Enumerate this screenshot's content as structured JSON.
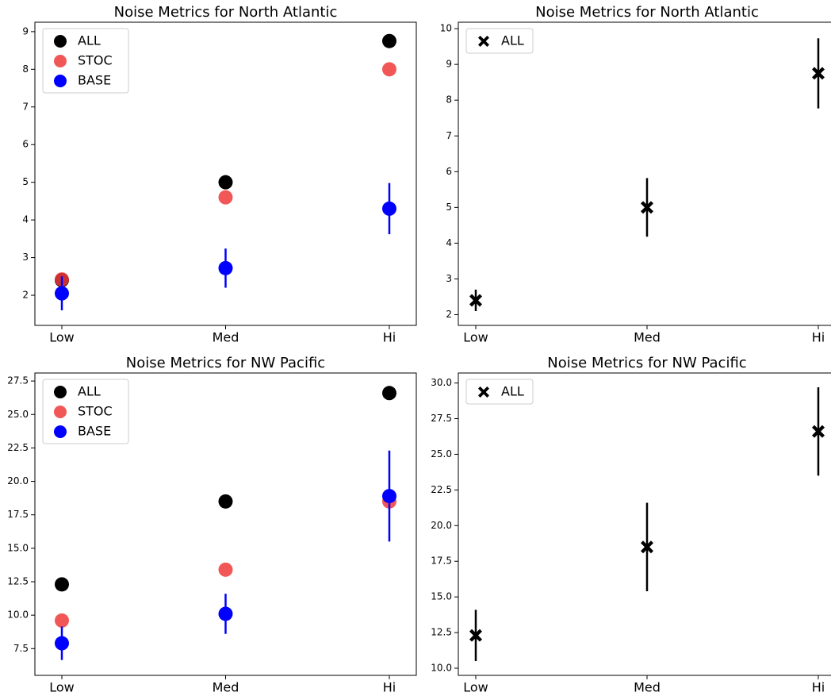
{
  "chart_data": [
    {
      "type": "scatter",
      "title": "Noise Metrics for North Atlantic",
      "categories": [
        "Low",
        "Med",
        "Hi"
      ],
      "series": [
        {
          "name": "ALL",
          "color": "#000000",
          "marker": "circle",
          "values": [
            2.4,
            5.0,
            8.75
          ]
        },
        {
          "name": "STOC",
          "color": "#f03a3a",
          "marker": "circle",
          "values": [
            2.42,
            4.6,
            8.0
          ]
        },
        {
          "name": "BASE",
          "color": "#0000ff",
          "marker": "circle",
          "values": [
            2.05,
            2.72,
            4.3
          ],
          "errors": [
            0.45,
            0.52,
            0.68
          ]
        }
      ],
      "ylim": [
        1.2,
        9.25
      ],
      "yticks": [
        2,
        3,
        4,
        5,
        6,
        7,
        8,
        9
      ],
      "grid": false,
      "legend": "upper left"
    },
    {
      "type": "scatter",
      "title": "Noise Metrics for North Atlantic",
      "categories": [
        "Low",
        "Med",
        "Hi"
      ],
      "series": [
        {
          "name": "ALL",
          "color": "#000000",
          "marker": "x",
          "values": [
            2.4,
            5.0,
            8.75
          ],
          "errors": [
            0.3,
            0.82,
            0.98
          ]
        }
      ],
      "ylim": [
        1.7,
        10.18
      ],
      "yticks": [
        2,
        3,
        4,
        5,
        6,
        7,
        8,
        9,
        10
      ],
      "grid": false,
      "legend": "upper left"
    },
    {
      "type": "scatter",
      "title": "Noise Metrics for NW Pacific",
      "categories": [
        "Low",
        "Med",
        "Hi"
      ],
      "series": [
        {
          "name": "ALL",
          "color": "#000000",
          "marker": "circle",
          "values": [
            12.3,
            18.5,
            26.6
          ]
        },
        {
          "name": "STOC",
          "color": "#f03a3a",
          "marker": "circle",
          "values": [
            9.6,
            13.4,
            18.5
          ]
        },
        {
          "name": "BASE",
          "color": "#0000ff",
          "marker": "circle",
          "values": [
            7.9,
            10.1,
            18.9
          ],
          "errors": [
            1.25,
            1.5,
            3.4
          ]
        }
      ],
      "ylim": [
        5.5,
        28.1
      ],
      "yticks": [
        7.5,
        {
          "value": 10,
          "label": "10.0"
        },
        12.5,
        {
          "value": 15,
          "label": "15.0"
        },
        17.5,
        {
          "value": 20,
          "label": "20.0"
        },
        22.5,
        {
          "value": 25,
          "label": "25.0"
        },
        27.5
      ],
      "grid": false,
      "legend": "upper left"
    },
    {
      "type": "scatter",
      "title": "Noise Metrics for NW Pacific",
      "categories": [
        "Low",
        "Med",
        "Hi"
      ],
      "series": [
        {
          "name": "ALL",
          "color": "#000000",
          "marker": "x",
          "values": [
            12.3,
            18.5,
            26.6
          ],
          "errors": [
            1.8,
            3.1,
            3.1
          ]
        }
      ],
      "ylim": [
        9.5,
        30.7
      ],
      "yticks": [
        {
          "value": 10,
          "label": "10.0"
        },
        12.5,
        {
          "value": 15,
          "label": "15.0"
        },
        17.5,
        {
          "value": 20,
          "label": "20.0"
        },
        22.5,
        {
          "value": 25,
          "label": "25.0"
        },
        27.5,
        {
          "value": 30,
          "label": "30.0"
        }
      ],
      "grid": false,
      "legend": "upper left"
    }
  ]
}
